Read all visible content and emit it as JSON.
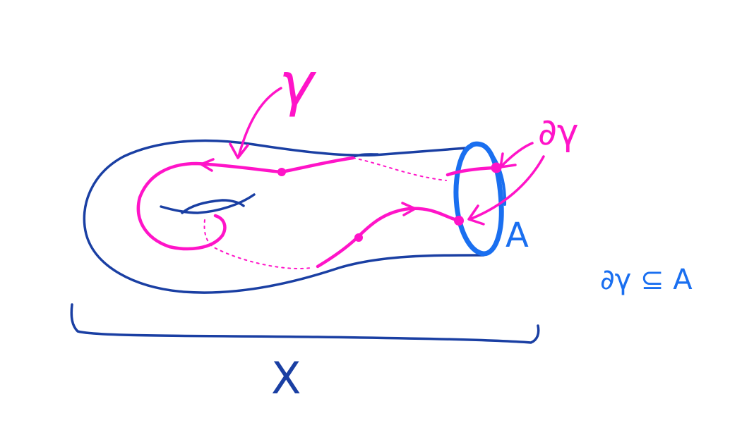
{
  "colors": {
    "surface": "#1a3fa3",
    "curve": "#ff14c8",
    "boundary": "#1a6ff0",
    "background": "#ffffff"
  },
  "labels": {
    "gamma": "γ",
    "boundary_gamma": "∂γ",
    "boundary_component": "A",
    "space": "X",
    "relation": "∂γ ⊆ A"
  }
}
